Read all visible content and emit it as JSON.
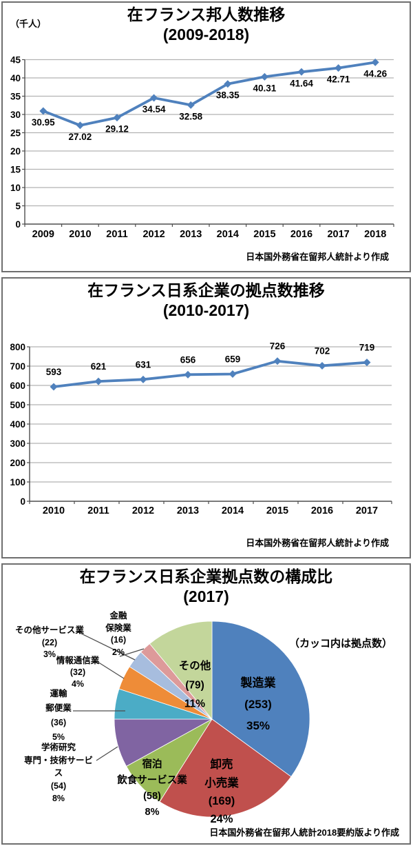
{
  "charts": [
    {
      "title_line1": "在フランス邦人数推移",
      "title_line2": "(2009-2018)",
      "unit_label": "（千人）",
      "source": "日本国外務省在留邦人統計より作成",
      "chart_data": {
        "type": "line",
        "x": [
          "2009",
          "2010",
          "2011",
          "2012",
          "2013",
          "2014",
          "2015",
          "2016",
          "2017",
          "2018"
        ],
        "values": [
          30.95,
          27.02,
          29.12,
          34.54,
          32.58,
          38.35,
          40.31,
          41.64,
          42.71,
          44.26
        ],
        "ylabel": "（千人）",
        "ylim": [
          0,
          45
        ],
        "ytick_step": 5,
        "grid": true,
        "legend": "none",
        "line_color": "#4F81BD",
        "marker": "diamond",
        "data_label_position": "below"
      }
    },
    {
      "title_line1": "在フランス日系企業の拠点数推移",
      "title_line2": "(2010-2017)",
      "source": "日本国外務省在留邦人統計より作成",
      "chart_data": {
        "type": "line",
        "x": [
          "2010",
          "2011",
          "2012",
          "2013",
          "2014",
          "2015",
          "2016",
          "2017"
        ],
        "values": [
          593,
          621,
          631,
          656,
          659,
          726,
          702,
          719
        ],
        "ylim": [
          0,
          800
        ],
        "ytick_step": 100,
        "grid": true,
        "legend": "none",
        "line_color": "#4F81BD",
        "marker": "diamond",
        "data_label_position": "above"
      }
    },
    {
      "title_line1": "在フランス日系企業拠点数の構成比",
      "title_line2": "(2017)",
      "note": "（カッコ内は拠点数）",
      "source": "日本国外務省在留邦人統計2018要約版より作成",
      "chart_data": {
        "type": "pie",
        "start_angle": 0,
        "direction": "clockwise",
        "slices": [
          {
            "name": "製造業",
            "count": 253,
            "pct": 35,
            "color": "#4F81BD",
            "label_lines": [
              "製造業",
              "(253)",
              "35%"
            ]
          },
          {
            "name": "卸売小売業",
            "count": 169,
            "pct": 24,
            "color": "#C0504D",
            "label_lines": [
              "卸売",
              "小売業",
              "(169)",
              "24%"
            ]
          },
          {
            "name": "宿泊飲食サービス業",
            "count": 58,
            "pct": 8,
            "color": "#9BBB59",
            "label_lines": [
              "宿泊",
              "飲食サービス業",
              "(58)",
              "8%"
            ]
          },
          {
            "name": "学術研究専門・技術サービス",
            "count": 54,
            "pct": 8,
            "color": "#8064A2",
            "label_lines": [
              "学術研究",
              "専門・技術サービ",
              "ス",
              "(54)",
              "8%"
            ]
          },
          {
            "name": "運輸郵便業",
            "count": 36,
            "pct": 5,
            "color": "#4BACC6",
            "label_lines": [
              "運輸",
              "郵便業",
              "(36)",
              "5%"
            ]
          },
          {
            "name": "情報通信業",
            "count": 32,
            "pct": 4,
            "color": "#EE8C38",
            "label_lines": [
              "情報通信業",
              "(32)",
              "4%"
            ]
          },
          {
            "name": "その他サービス業",
            "count": 22,
            "pct": 3,
            "color": "#A7BDDE",
            "label_lines": [
              "その他サービス業",
              "(22)",
              "3%"
            ]
          },
          {
            "name": "金融保険業",
            "count": 16,
            "pct": 2,
            "color": "#DD9A9A",
            "label_lines": [
              "金融",
              "保険業",
              "(16)",
              "2%"
            ]
          },
          {
            "name": "その他",
            "count": 79,
            "pct": 11,
            "color": "#C3D69B",
            "label_lines": [
              "その他",
              "(79)",
              "11%"
            ]
          }
        ]
      }
    }
  ]
}
